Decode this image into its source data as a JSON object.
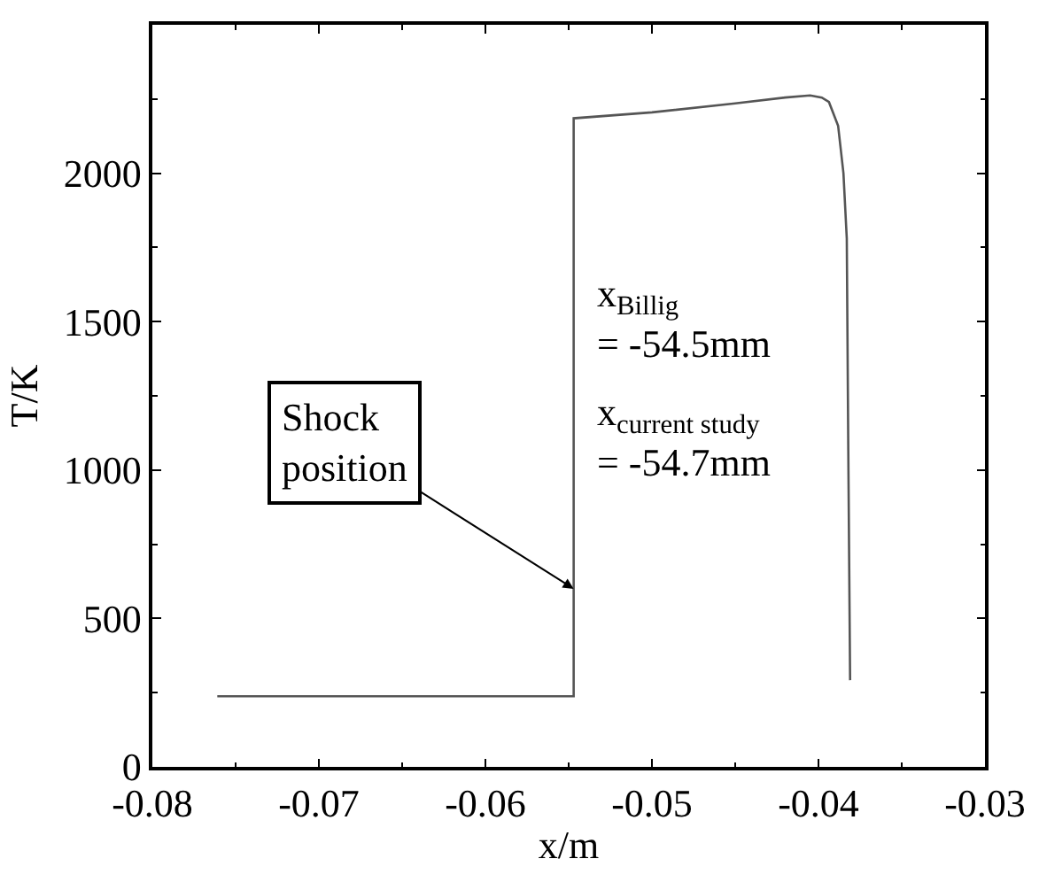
{
  "chart_data": {
    "type": "line",
    "xlabel": "x/m",
    "ylabel": "T/K",
    "x": [
      -0.0761,
      -0.0547,
      -0.0547,
      -0.05,
      -0.045,
      -0.042,
      -0.0405,
      -0.0398,
      -0.03937,
      -0.03882,
      -0.0385,
      -0.0383,
      -0.0382,
      -0.0381
    ],
    "series": [
      {
        "color": "#555555",
        "values": [
          238,
          238,
          2185,
          2205,
          2235,
          2255,
          2262,
          2255,
          2240,
          2160,
          2000,
          1780,
          1000,
          292
        ]
      }
    ],
    "xlim": [
      -0.08,
      -0.03
    ],
    "xticks": [
      -0.08,
      -0.07,
      -0.06,
      -0.05,
      -0.04,
      -0.03
    ],
    "ylim": [
      0,
      2500
    ],
    "yticks": [
      0,
      500,
      1000,
      1500,
      2000
    ],
    "annotations": [
      {
        "text": "Shock\nposition",
        "x": -0.0547,
        "y": 600
      },
      "x$_{Billig}$\n= -54.5mm",
      "x$_{current study}$\n= -54.7mm"
    ],
    "marker": "none",
    "line_style": "solid"
  }
}
